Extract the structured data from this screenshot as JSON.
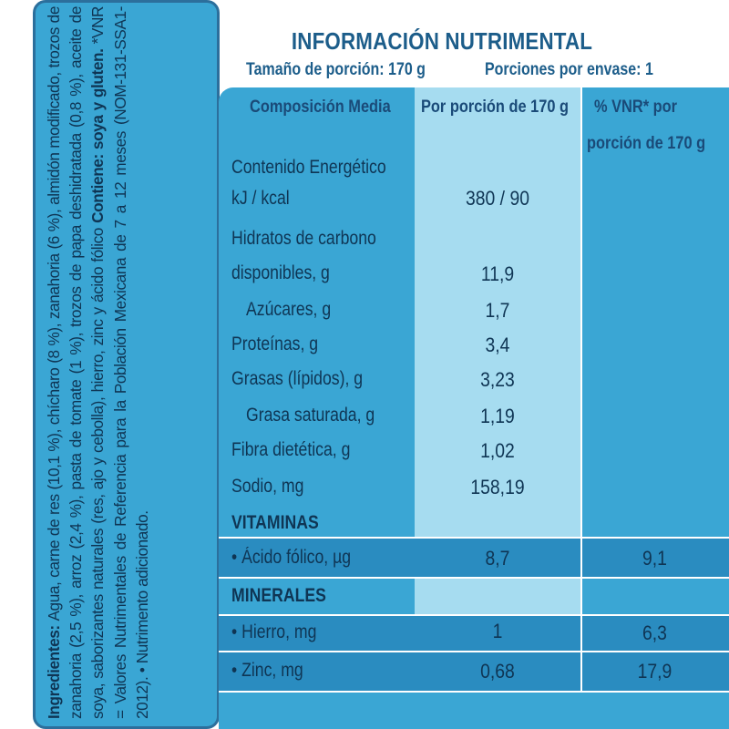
{
  "ingredients": {
    "label": "Ingredientes:",
    "text": "Agua, carne de res (10,1 %), chícharo (8 %), zanahoria (6 %), almidón modificado, trozos de zanahoria (2,5 %), arroz (2,4 %), pasta de tomate (1 %), trozos de papa deshidratada (0,8 %), aceite de soya, saborizantes naturales (res, ajo y cebolla), hierro, zinc y ácido fólico",
    "contains_label": "Contiene: soya y gluten.",
    "note": "*VNR = Valores Nutrimentales de Referencia para la Población Mexicana de 7 a 12 meses (NOM-131-SSA1-2012). • Nutrimento adicionado."
  },
  "table": {
    "title": "INFORMACIÓN NUTRIMENTAL",
    "serving_size": "Tamaño de porción: 170 g",
    "servings_per_container": "Porciones por envase: 1",
    "headers": {
      "composition": "Composición Media",
      "per_serving": "Por porción de 170  g",
      "vnr_line1": "% VNR* por",
      "vnr_line2": "porción de 170  g"
    },
    "rows": {
      "energy_l1": "Contenido Energético",
      "energy_l2": "kJ / kcal",
      "energy_v": "380 / 90",
      "carb_l1": "Hidratos de carbono",
      "carb_l2": "disponibles, g",
      "carb_v": "11,9",
      "sugar": "Azúcares, g",
      "sugar_v": "1,7",
      "protein": "Proteínas, g",
      "protein_v": "3,4",
      "fat": "Grasas (lípidos), g",
      "fat_v": "3,23",
      "satfat": "Grasa saturada, g",
      "satfat_v": "1,19",
      "fiber": "Fibra dietética, g",
      "fiber_v": "1,02",
      "sodium": "Sodio, mg",
      "sodium_v": "158,19"
    },
    "vitamins": {
      "label": "VITAMINAS",
      "folic": "• Ácido fólico, µg",
      "folic_v": "8,7",
      "folic_vnr": "9,1"
    },
    "minerals": {
      "label": "MINERALES",
      "iron": "• Hierro, mg",
      "iron_v": "1",
      "iron_vnr": "6,3",
      "zinc": "• Zinc, mg",
      "zinc_v": "0,68",
      "zinc_vnr": "17,9"
    }
  },
  "colors": {
    "panel_blue": "#3aa6d4",
    "light_column": "#a6dcf0",
    "dark_band": "#2a8cc0",
    "text_navy": "#0f3554"
  }
}
